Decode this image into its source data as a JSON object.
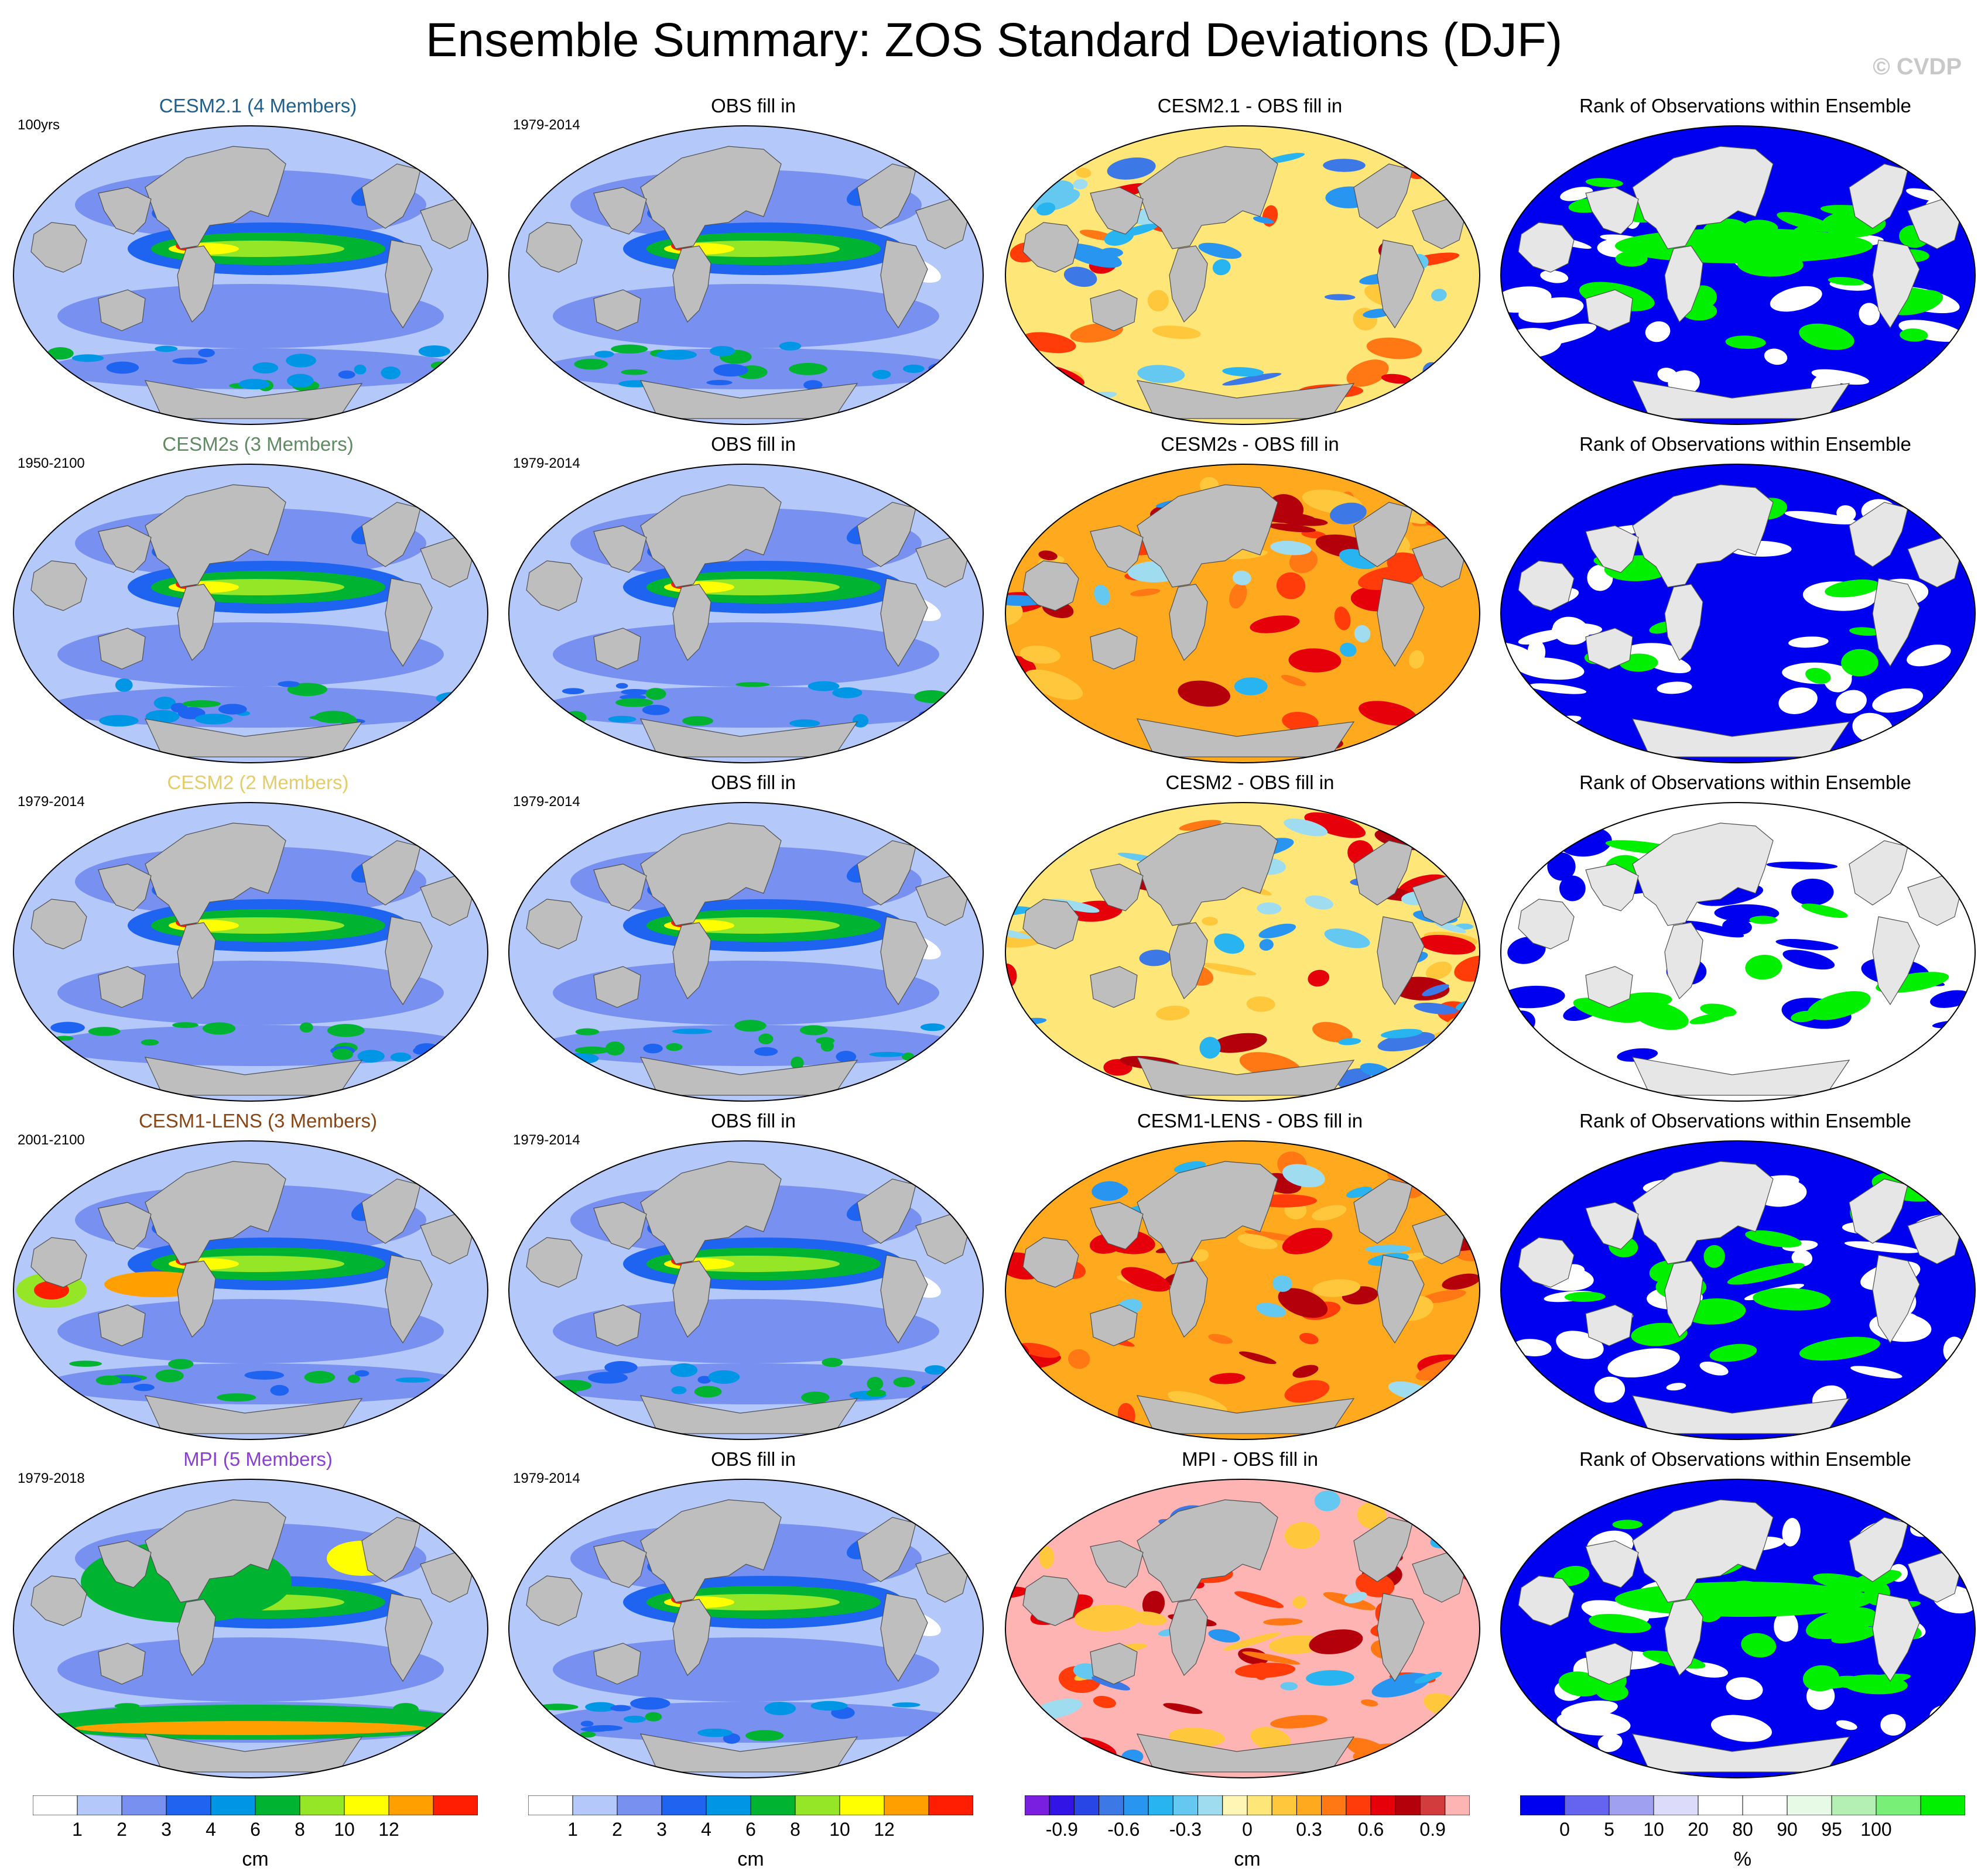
{
  "title": "Ensemble Summary: ZOS Standard Deviations (DJF)",
  "watermark": "© CVDP",
  "colors": {
    "ocean_bg": "#dcdcdc",
    "land": "#bebebe",
    "rank_land": "#e6e6e6",
    "outline": "#505050"
  },
  "rows": [
    {
      "model": {
        "title": "CESM2.1 (4 Members)",
        "title_color": "#1f5f8b",
        "period": "100yrs",
        "variant": "std"
      },
      "obs": {
        "title": "OBS fill in",
        "period": "1979-2014",
        "variant": "obs"
      },
      "diff": {
        "title": "CESM2.1 - OBS fill in",
        "variant": "diff_mixed"
      },
      "rank": {
        "title": "Rank of Observations within Ensemble",
        "variant": "rank_green"
      }
    },
    {
      "model": {
        "title": "CESM2s (3 Members)",
        "title_color": "#5f8a62",
        "period": "1950-2100",
        "variant": "std"
      },
      "obs": {
        "title": "OBS fill in",
        "period": "1979-2014",
        "variant": "obs"
      },
      "diff": {
        "title": "CESM2s - OBS fill in",
        "variant": "diff_warm"
      },
      "rank": {
        "title": "Rank of Observations within Ensemble",
        "variant": "rank_blue"
      }
    },
    {
      "model": {
        "title": "CESM2 (2 Members)",
        "title_color": "#e3cc6a",
        "period": "1979-2014",
        "variant": "std"
      },
      "obs": {
        "title": "OBS fill in",
        "period": "1979-2014",
        "variant": "obs"
      },
      "diff": {
        "title": "CESM2 - OBS fill in",
        "variant": "diff_mixed"
      },
      "rank": {
        "title": "Rank of Observations within Ensemble",
        "variant": "rank_white"
      }
    },
    {
      "model": {
        "title": "CESM1-LENS (3 Members)",
        "title_color": "#8b4513",
        "period": "2001-2100",
        "variant": "std_high"
      },
      "obs": {
        "title": "OBS fill in",
        "period": "1979-2014",
        "variant": "obs"
      },
      "diff": {
        "title": "CESM1-LENS - OBS fill in",
        "variant": "diff_warm"
      },
      "rank": {
        "title": "Rank of Observations within Ensemble",
        "variant": "rank_blue"
      }
    },
    {
      "model": {
        "title": "MPI (5 Members)",
        "title_color": "#8a3fd1",
        "period": "1979-2018",
        "variant": "std_mpi"
      },
      "obs": {
        "title": "OBS fill in",
        "period": "1979-2014",
        "variant": "obs"
      },
      "diff": {
        "title": "MPI - OBS fill in",
        "variant": "diff_pink"
      },
      "rank": {
        "title": "Rank of Observations within Ensemble",
        "variant": "rank_green"
      }
    }
  ],
  "colorbars": [
    {
      "unit": "cm",
      "colors": [
        "#ffffff",
        "#b4c8fa",
        "#7890f0",
        "#1e64f0",
        "#0096e6",
        "#00b432",
        "#96e628",
        "#ffff00",
        "#ffa000",
        "#ff1e00"
      ],
      "tick_labels": [
        "1",
        "2",
        "3",
        "4",
        "6",
        "8",
        "10",
        "12"
      ]
    },
    {
      "unit": "cm",
      "colors": [
        "#ffffff",
        "#b4c8fa",
        "#7890f0",
        "#1e64f0",
        "#0096e6",
        "#00b432",
        "#96e628",
        "#ffff00",
        "#ffa000",
        "#ff1e00"
      ],
      "tick_labels": [
        "1",
        "2",
        "3",
        "4",
        "6",
        "8",
        "10",
        "12"
      ]
    },
    {
      "unit": "cm",
      "colors": [
        "#7a1fe0",
        "#3214e6",
        "#2846e6",
        "#3c78e6",
        "#2896f0",
        "#28b4f0",
        "#64c8f0",
        "#a0dcf0",
        "#fff5b4",
        "#ffe678",
        "#ffc83c",
        "#ffaa1e",
        "#ff7814",
        "#ff3c0a",
        "#e6000a",
        "#b4000a",
        "#d23c3c",
        "#ffb4b4"
      ],
      "tick_labels": [
        "-0.9",
        "-0.6",
        "-0.3",
        "0",
        "0.3",
        "0.6",
        "0.9"
      ]
    },
    {
      "unit": "%",
      "colors": [
        "#0000f0",
        "#6464f0",
        "#a0a0f0",
        "#dcdcfa",
        "#ffffff",
        "#ffffff",
        "#e6fae6",
        "#b4f0b4",
        "#78f078",
        "#00f000"
      ],
      "tick_labels": [
        "0",
        "5",
        "10",
        "20",
        "80",
        "90",
        "95",
        "100"
      ]
    }
  ]
}
